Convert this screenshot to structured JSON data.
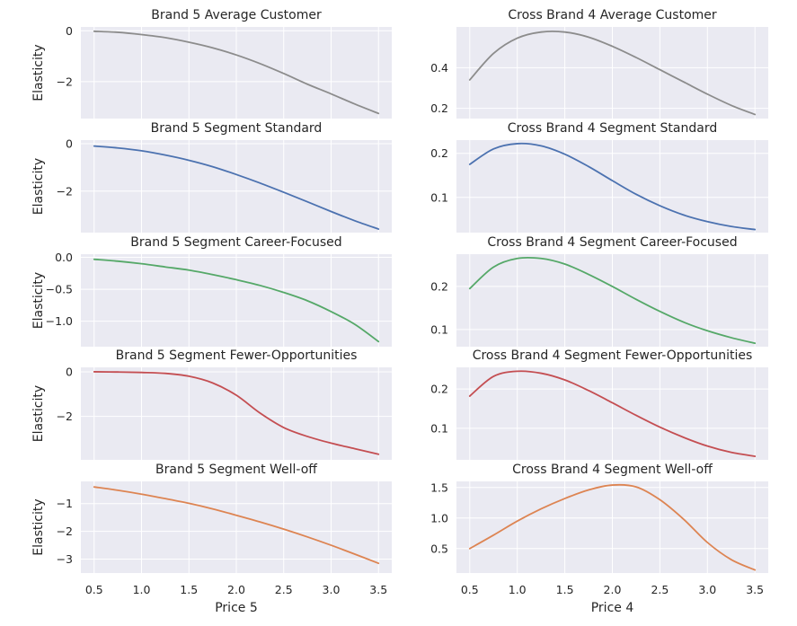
{
  "figure": {
    "left_xlabel": "Price 5",
    "right_xlabel": "Price 4",
    "ylabel": "Elasticity"
  },
  "chart_data": [
    {
      "type": "line",
      "title": "Brand 5 Average Customer",
      "xlabel": "",
      "ylabel": "Elasticity",
      "color": "#8c8c8c",
      "xlim": [
        0.36,
        3.64
      ],
      "ylim": [
        -3.45,
        0.15
      ],
      "xticks": [
        0.5,
        1.0,
        1.5,
        2.0,
        2.5,
        3.0,
        3.5
      ],
      "xtick_labels_visible": false,
      "yticks": [
        -2,
        0
      ],
      "ytick_labels": [
        "−2",
        "0"
      ],
      "x": [
        0.5,
        0.75,
        1.0,
        1.25,
        1.5,
        1.75,
        2.0,
        2.25,
        2.5,
        2.75,
        3.0,
        3.25,
        3.5
      ],
      "y": [
        -0.02,
        -0.06,
        -0.15,
        -0.27,
        -0.45,
        -0.67,
        -0.95,
        -1.29,
        -1.68,
        -2.1,
        -2.48,
        -2.88,
        -3.25
      ]
    },
    {
      "type": "line",
      "title": "Cross Brand 4 Average Customer",
      "xlabel": "",
      "ylabel": "",
      "color": "#8c8c8c",
      "xlim": [
        0.36,
        3.64
      ],
      "ylim": [
        0.15,
        0.6
      ],
      "xticks": [
        0.5,
        1.0,
        1.5,
        2.0,
        2.5,
        3.0,
        3.5
      ],
      "xtick_labels_visible": false,
      "yticks": [
        0.2,
        0.4
      ],
      "ytick_labels": [
        "0.2",
        "0.4"
      ],
      "x": [
        0.5,
        0.75,
        1.0,
        1.25,
        1.5,
        1.75,
        2.0,
        2.25,
        2.5,
        2.75,
        3.0,
        3.25,
        3.5
      ],
      "y": [
        0.34,
        0.47,
        0.545,
        0.575,
        0.575,
        0.55,
        0.505,
        0.45,
        0.39,
        0.33,
        0.27,
        0.215,
        0.17
      ]
    },
    {
      "type": "line",
      "title": "Brand 5 Segment Standard",
      "xlabel": "",
      "ylabel": "Elasticity",
      "color": "#4c72b0",
      "xlim": [
        0.36,
        3.64
      ],
      "ylim": [
        -3.75,
        0.15
      ],
      "xticks": [
        0.5,
        1.0,
        1.5,
        2.0,
        2.5,
        3.0,
        3.5
      ],
      "xtick_labels_visible": false,
      "yticks": [
        -2,
        0
      ],
      "ytick_labels": [
        "−2",
        "0"
      ],
      "x": [
        0.5,
        0.75,
        1.0,
        1.25,
        1.5,
        1.75,
        2.0,
        2.25,
        2.5,
        2.75,
        3.0,
        3.25,
        3.5
      ],
      "y": [
        -0.1,
        -0.18,
        -0.3,
        -0.48,
        -0.7,
        -0.97,
        -1.3,
        -1.66,
        -2.05,
        -2.45,
        -2.86,
        -3.25,
        -3.6
      ]
    },
    {
      "type": "line",
      "title": "Cross Brand 4 Segment Standard",
      "xlabel": "",
      "ylabel": "",
      "color": "#4c72b0",
      "xlim": [
        0.36,
        3.64
      ],
      "ylim": [
        0.02,
        0.23
      ],
      "xticks": [
        0.5,
        1.0,
        1.5,
        2.0,
        2.5,
        3.0,
        3.5
      ],
      "xtick_labels_visible": false,
      "yticks": [
        0.1,
        0.2
      ],
      "ytick_labels": [
        "0.1",
        "0.2"
      ],
      "x": [
        0.5,
        0.75,
        1.0,
        1.25,
        1.5,
        1.75,
        2.0,
        2.25,
        2.5,
        2.75,
        3.0,
        3.25,
        3.5
      ],
      "y": [
        0.175,
        0.21,
        0.222,
        0.217,
        0.198,
        0.17,
        0.138,
        0.107,
        0.081,
        0.06,
        0.045,
        0.034,
        0.027
      ]
    },
    {
      "type": "line",
      "title": "Brand 5 Segment Career-Focused",
      "xlabel": "",
      "ylabel": "Elasticity",
      "color": "#55a868",
      "xlim": [
        0.36,
        3.64
      ],
      "ylim": [
        -1.4,
        0.05
      ],
      "xticks": [
        0.5,
        1.0,
        1.5,
        2.0,
        2.5,
        3.0,
        3.5
      ],
      "xtick_labels_visible": false,
      "yticks": [
        -1.0,
        -0.5,
        0.0
      ],
      "ytick_labels": [
        "−1.0",
        "−0.5",
        "0.0"
      ],
      "x": [
        0.5,
        0.75,
        1.0,
        1.25,
        1.5,
        1.75,
        2.0,
        2.25,
        2.5,
        2.75,
        3.0,
        3.25,
        3.5
      ],
      "y": [
        -0.03,
        -0.06,
        -0.1,
        -0.15,
        -0.2,
        -0.27,
        -0.35,
        -0.44,
        -0.55,
        -0.68,
        -0.85,
        -1.05,
        -1.32
      ]
    },
    {
      "type": "line",
      "title": "Cross Brand 4 Segment Career-Focused",
      "xlabel": "",
      "ylabel": "",
      "color": "#55a868",
      "xlim": [
        0.36,
        3.64
      ],
      "ylim": [
        0.06,
        0.275
      ],
      "xticks": [
        0.5,
        1.0,
        1.5,
        2.0,
        2.5,
        3.0,
        3.5
      ],
      "xtick_labels_visible": false,
      "yticks": [
        0.1,
        0.2
      ],
      "ytick_labels": [
        "0.1",
        "0.2"
      ],
      "x": [
        0.5,
        0.75,
        1.0,
        1.25,
        1.5,
        1.75,
        2.0,
        2.25,
        2.5,
        2.75,
        3.0,
        3.25,
        3.5
      ],
      "y": [
        0.195,
        0.245,
        0.265,
        0.265,
        0.252,
        0.228,
        0.2,
        0.17,
        0.142,
        0.117,
        0.097,
        0.081,
        0.068
      ]
    },
    {
      "type": "line",
      "title": "Brand 5 Segment Fewer-Opportunities",
      "xlabel": "",
      "ylabel": "Elasticity",
      "color": "#c44e52",
      "xlim": [
        0.36,
        3.64
      ],
      "ylim": [
        -3.95,
        0.2
      ],
      "xticks": [
        0.5,
        1.0,
        1.5,
        2.0,
        2.5,
        3.0,
        3.5
      ],
      "xtick_labels_visible": false,
      "yticks": [
        -2,
        0
      ],
      "ytick_labels": [
        "−2",
        "0"
      ],
      "x": [
        0.5,
        0.75,
        1.0,
        1.25,
        1.5,
        1.75,
        2.0,
        2.25,
        2.5,
        2.75,
        3.0,
        3.25,
        3.5
      ],
      "y": [
        0.0,
        -0.01,
        -0.03,
        -0.07,
        -0.2,
        -0.5,
        -1.05,
        -1.85,
        -2.5,
        -2.9,
        -3.2,
        -3.45,
        -3.7
      ]
    },
    {
      "type": "line",
      "title": "Cross Brand 4 Segment Fewer-Opportunities",
      "xlabel": "",
      "ylabel": "",
      "color": "#c44e52",
      "xlim": [
        0.36,
        3.64
      ],
      "ylim": [
        0.02,
        0.255
      ],
      "xticks": [
        0.5,
        1.0,
        1.5,
        2.0,
        2.5,
        3.0,
        3.5
      ],
      "xtick_labels_visible": false,
      "yticks": [
        0.1,
        0.2
      ],
      "ytick_labels": [
        "0.1",
        "0.2"
      ],
      "x": [
        0.5,
        0.75,
        1.0,
        1.25,
        1.5,
        1.75,
        2.0,
        2.25,
        2.5,
        2.75,
        3.0,
        3.25,
        3.5
      ],
      "y": [
        0.182,
        0.232,
        0.245,
        0.24,
        0.223,
        0.196,
        0.165,
        0.133,
        0.103,
        0.077,
        0.055,
        0.039,
        0.029
      ]
    },
    {
      "type": "line",
      "title": "Brand 5 Segment Well-off",
      "xlabel": "Price 5",
      "ylabel": "Elasticity",
      "color": "#dd8452",
      "xlim": [
        0.36,
        3.64
      ],
      "ylim": [
        -3.5,
        -0.2
      ],
      "xticks": [
        0.5,
        1.0,
        1.5,
        2.0,
        2.5,
        3.0,
        3.5
      ],
      "xtick_labels_visible": true,
      "xtick_labels": [
        "0.5",
        "1.0",
        "1.5",
        "2.0",
        "2.5",
        "3.0",
        "3.5"
      ],
      "yticks": [
        -3,
        -2,
        -1
      ],
      "ytick_labels": [
        "−3",
        "−2",
        "−1"
      ],
      "x": [
        0.5,
        0.75,
        1.0,
        1.25,
        1.5,
        1.75,
        2.0,
        2.25,
        2.5,
        2.75,
        3.0,
        3.25,
        3.5
      ],
      "y": [
        -0.4,
        -0.52,
        -0.66,
        -0.82,
        -0.99,
        -1.19,
        -1.42,
        -1.66,
        -1.92,
        -2.2,
        -2.5,
        -2.82,
        -3.15
      ]
    },
    {
      "type": "line",
      "title": "Cross Brand 4 Segment Well-off",
      "xlabel": "Price 4",
      "ylabel": "",
      "color": "#dd8452",
      "xlim": [
        0.36,
        3.64
      ],
      "ylim": [
        0.1,
        1.6
      ],
      "xticks": [
        0.5,
        1.0,
        1.5,
        2.0,
        2.5,
        3.0,
        3.5
      ],
      "xtick_labels_visible": true,
      "xtick_labels": [
        "0.5",
        "1.0",
        "1.5",
        "2.0",
        "2.5",
        "3.0",
        "3.5"
      ],
      "yticks": [
        0.5,
        1.0,
        1.5
      ],
      "ytick_labels": [
        "0.5",
        "1.0",
        "1.5"
      ],
      "x": [
        0.5,
        0.75,
        1.0,
        1.25,
        1.5,
        1.75,
        2.0,
        2.25,
        2.5,
        2.75,
        3.0,
        3.25,
        3.5
      ],
      "y": [
        0.5,
        0.72,
        0.95,
        1.15,
        1.32,
        1.46,
        1.54,
        1.51,
        1.3,
        0.98,
        0.6,
        0.32,
        0.15
      ]
    }
  ]
}
